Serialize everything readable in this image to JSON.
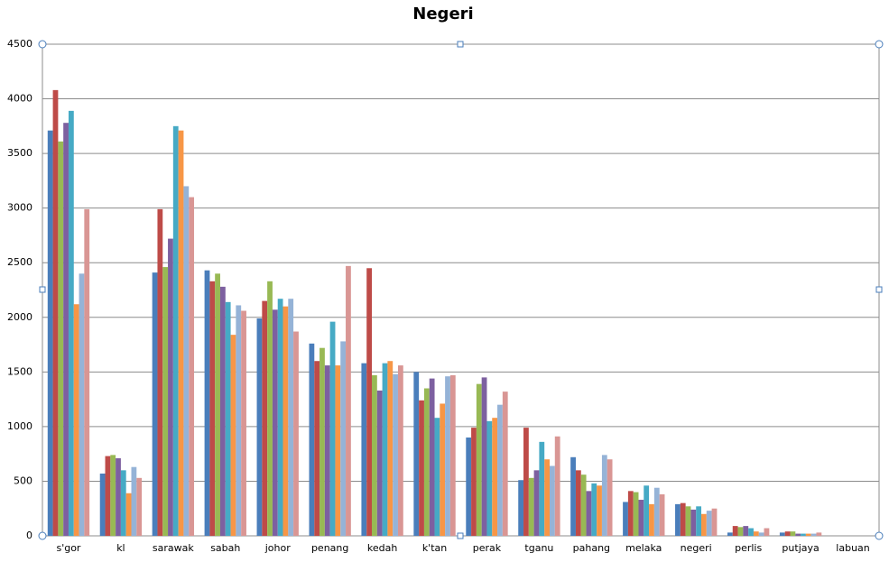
{
  "chart_data": {
    "type": "bar",
    "title": "Negeri",
    "categories": [
      "s'gor",
      "kl",
      "sarawak",
      "sabah",
      "johor",
      "penang",
      "kedah",
      "k'tan",
      "perak",
      "tganu",
      "pahang",
      "melaka",
      "negeri",
      "perlis",
      "putjaya",
      "labuan"
    ],
    "series": [
      {
        "color": "#4a7ebb",
        "values": [
          3710,
          570,
          2410,
          2430,
          1990,
          1760,
          1580,
          1500,
          900,
          510,
          720,
          310,
          290,
          30,
          30,
          0
        ]
      },
      {
        "color": "#be4b48",
        "values": [
          4080,
          730,
          2990,
          2330,
          2150,
          1600,
          2450,
          1240,
          990,
          990,
          600,
          410,
          300,
          90,
          40,
          0
        ]
      },
      {
        "color": "#98b954",
        "values": [
          3610,
          740,
          2460,
          2400,
          2330,
          1720,
          1470,
          1350,
          1390,
          530,
          560,
          400,
          270,
          80,
          40,
          0
        ]
      },
      {
        "color": "#7d60a0",
        "values": [
          3780,
          710,
          2720,
          2280,
          2070,
          1560,
          1330,
          1440,
          1450,
          600,
          410,
          330,
          240,
          90,
          20,
          0
        ]
      },
      {
        "color": "#46aac5",
        "values": [
          3890,
          600,
          3750,
          2140,
          2170,
          1960,
          1580,
          1080,
          1050,
          860,
          480,
          460,
          270,
          70,
          20,
          0
        ]
      },
      {
        "color": "#f79646",
        "values": [
          2120,
          390,
          3710,
          1840,
          2100,
          1560,
          1600,
          1210,
          1080,
          700,
          460,
          290,
          200,
          40,
          20,
          0
        ]
      },
      {
        "color": "#95b3d7",
        "values": [
          2400,
          630,
          3200,
          2110,
          2170,
          1780,
          1480,
          1460,
          1200,
          640,
          740,
          440,
          230,
          30,
          20,
          0
        ]
      },
      {
        "color": "#d99694",
        "values": [
          2990,
          530,
          3100,
          2060,
          1870,
          2470,
          1560,
          1470,
          1320,
          910,
          700,
          380,
          250,
          70,
          30,
          0
        ]
      }
    ],
    "ylim": [
      0,
      4500
    ],
    "yticks": [
      0,
      500,
      1000,
      1500,
      2000,
      2500,
      3000,
      3500,
      4000,
      4500
    ],
    "grid": true
  }
}
